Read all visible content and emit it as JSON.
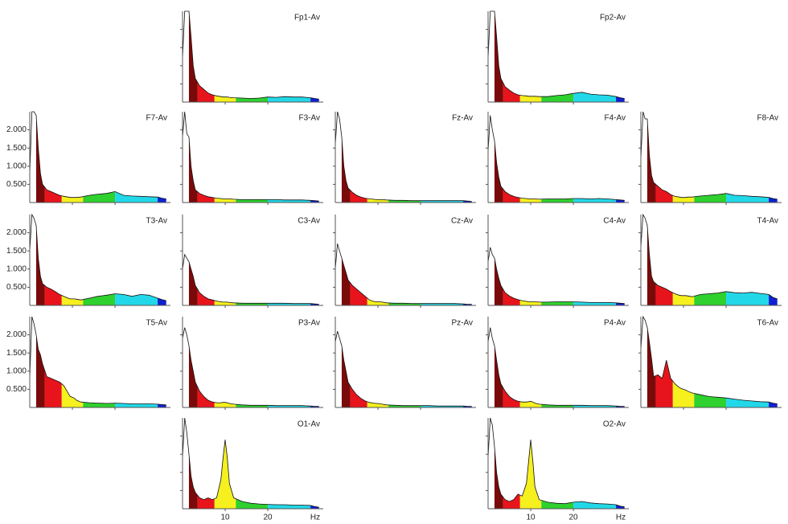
{
  "chart_data": {
    "type": "area",
    "x": [
      0,
      0.5,
      1,
      1.5,
      2,
      2.5,
      3,
      4,
      5,
      6,
      7,
      8,
      9,
      9.5,
      10,
      10.5,
      11,
      12,
      14,
      16,
      18,
      20,
      22,
      24,
      26,
      28,
      30,
      31,
      32
    ],
    "xlim": [
      0,
      33
    ],
    "xticks": [
      10,
      20
    ],
    "xlabel": "Hz",
    "ylim": [
      0,
      2500
    ],
    "yticks": [
      {
        "value": 500,
        "label": "0.500"
      },
      {
        "value": 1000,
        "label": "1.000"
      },
      {
        "value": 1500,
        "label": "1.500"
      },
      {
        "value": 2000,
        "label": "2.000"
      }
    ],
    "grid": false,
    "line_color": "#111111",
    "bands": [
      {
        "from": 1.5,
        "to": 3.5,
        "color": "#7a0a0a"
      },
      {
        "from": 3.5,
        "to": 7.5,
        "color": "#e8141c"
      },
      {
        "from": 7.5,
        "to": 12.5,
        "color": "#f5f01e"
      },
      {
        "from": 12.5,
        "to": 20,
        "color": "#2ed12e"
      },
      {
        "from": 20,
        "to": 30,
        "color": "#22d8e8"
      },
      {
        "from": 30,
        "to": 33,
        "color": "#1020d0"
      }
    ],
    "series": [
      {
        "name": "Fp1-Av",
        "values": [
          1200,
          2500,
          2500,
          2500,
          1800,
          1000,
          650,
          450,
          350,
          250,
          200,
          170,
          150,
          140,
          140,
          140,
          130,
          120,
          110,
          100,
          110,
          140,
          130,
          150,
          140,
          140,
          120,
          100,
          80
        ]
      },
      {
        "name": "Fp2-Av",
        "values": [
          1200,
          2500,
          2500,
          2500,
          1800,
          1000,
          650,
          420,
          330,
          250,
          200,
          180,
          170,
          160,
          160,
          160,
          160,
          150,
          150,
          180,
          200,
          240,
          270,
          220,
          200,
          190,
          150,
          120,
          100
        ]
      },
      {
        "name": "F7-Av",
        "values": [
          800,
          2500,
          2500,
          2400,
          1500,
          800,
          500,
          350,
          300,
          250,
          200,
          170,
          150,
          140,
          140,
          140,
          140,
          150,
          200,
          230,
          250,
          300,
          200,
          180,
          170,
          160,
          150,
          120,
          100
        ]
      },
      {
        "name": "F3-Av",
        "values": [
          1800,
          2500,
          1900,
          1800,
          1000,
          600,
          350,
          250,
          200,
          160,
          140,
          120,
          110,
          100,
          100,
          100,
          100,
          90,
          80,
          80,
          80,
          80,
          80,
          70,
          70,
          70,
          60,
          50,
          40
        ]
      },
      {
        "name": "Fz-Av",
        "values": [
          1600,
          2500,
          2300,
          1800,
          1000,
          600,
          400,
          280,
          200,
          150,
          120,
          100,
          90,
          80,
          80,
          80,
          80,
          70,
          60,
          60,
          50,
          50,
          50,
          50,
          50,
          50,
          50,
          40,
          30
        ]
      },
      {
        "name": "F4-Av",
        "values": [
          1400,
          2400,
          2000,
          1700,
          1100,
          700,
          450,
          300,
          220,
          170,
          140,
          120,
          110,
          100,
          100,
          100,
          100,
          90,
          100,
          100,
          100,
          110,
          110,
          100,
          110,
          100,
          80,
          70,
          60
        ]
      },
      {
        "name": "F8-Av",
        "values": [
          1200,
          2500,
          2300,
          2300,
          1300,
          750,
          550,
          450,
          350,
          300,
          220,
          170,
          150,
          140,
          140,
          140,
          150,
          150,
          180,
          200,
          220,
          250,
          200,
          190,
          170,
          160,
          140,
          110,
          90
        ]
      },
      {
        "name": "T3-Av",
        "values": [
          1500,
          2500,
          2400,
          2200,
          1300,
          800,
          600,
          500,
          450,
          380,
          300,
          250,
          200,
          180,
          180,
          180,
          170,
          150,
          200,
          250,
          280,
          320,
          300,
          250,
          300,
          280,
          200,
          160,
          130
        ]
      },
      {
        "name": "C3-Av",
        "values": [
          1000,
          1400,
          1300,
          1200,
          1000,
          800,
          550,
          350,
          250,
          180,
          150,
          120,
          100,
          90,
          90,
          90,
          80,
          70,
          60,
          60,
          60,
          60,
          60,
          60,
          50,
          50,
          50,
          40,
          30
        ]
      },
      {
        "name": "Cz-Av",
        "values": [
          1000,
          1700,
          1500,
          1300,
          1100,
          900,
          700,
          550,
          450,
          350,
          250,
          150,
          110,
          100,
          100,
          100,
          90,
          70,
          60,
          60,
          50,
          50,
          50,
          50,
          50,
          50,
          40,
          30,
          30
        ]
      },
      {
        "name": "C4-Av",
        "values": [
          1200,
          1600,
          1400,
          1300,
          1000,
          750,
          550,
          350,
          260,
          200,
          160,
          130,
          110,
          100,
          100,
          100,
          100,
          90,
          90,
          100,
          100,
          100,
          90,
          80,
          80,
          80,
          70,
          60,
          50
        ]
      },
      {
        "name": "T4-Av",
        "values": [
          1600,
          2500,
          2400,
          2200,
          1400,
          800,
          650,
          550,
          500,
          450,
          380,
          320,
          280,
          270,
          270,
          270,
          260,
          240,
          300,
          320,
          340,
          380,
          350,
          340,
          360,
          330,
          300,
          220,
          180
        ]
      },
      {
        "name": "T5-Av",
        "values": [
          800,
          2500,
          2300,
          2000,
          1600,
          1450,
          1200,
          850,
          800,
          750,
          700,
          600,
          400,
          300,
          280,
          250,
          200,
          150,
          130,
          120,
          110,
          120,
          110,
          100,
          100,
          100,
          90,
          80,
          70
        ]
      },
      {
        "name": "P3-Av",
        "values": [
          1900,
          2200,
          2000,
          1700,
          1300,
          1000,
          700,
          450,
          300,
          200,
          150,
          130,
          130,
          140,
          140,
          130,
          110,
          90,
          70,
          60,
          60,
          60,
          50,
          50,
          50,
          50,
          40,
          30,
          30
        ]
      },
      {
        "name": "Pz-Av",
        "values": [
          1800,
          2100,
          1900,
          1700,
          1300,
          1000,
          700,
          500,
          350,
          250,
          180,
          140,
          120,
          110,
          110,
          100,
          90,
          70,
          60,
          50,
          50,
          50,
          50,
          40,
          40,
          40,
          40,
          30,
          30
        ]
      },
      {
        "name": "P4-Av",
        "values": [
          1800,
          2200,
          1900,
          1700,
          1300,
          900,
          650,
          450,
          300,
          220,
          170,
          150,
          150,
          160,
          170,
          150,
          120,
          90,
          70,
          60,
          60,
          60,
          60,
          50,
          50,
          50,
          40,
          30,
          30
        ]
      },
      {
        "name": "T6-Av",
        "values": [
          1600,
          2500,
          2400,
          2200,
          1800,
          1350,
          850,
          900,
          800,
          1300,
          800,
          650,
          550,
          520,
          500,
          480,
          450,
          400,
          350,
          300,
          280,
          260,
          230,
          200,
          180,
          160,
          150,
          120,
          100
        ]
      },
      {
        "name": "O1-Av",
        "values": [
          1400,
          2500,
          2100,
          1500,
          900,
          600,
          450,
          300,
          250,
          300,
          250,
          300,
          800,
          1400,
          1900,
          1400,
          700,
          300,
          200,
          150,
          130,
          120,
          110,
          110,
          100,
          100,
          90,
          60,
          40
        ]
      },
      {
        "name": "O2-Av",
        "values": [
          1400,
          2500,
          2300,
          1700,
          1000,
          600,
          400,
          250,
          200,
          250,
          400,
          350,
          700,
          1300,
          1900,
          1300,
          600,
          250,
          180,
          150,
          140,
          180,
          200,
          160,
          140,
          130,
          110,
          70,
          50
        ]
      }
    ]
  }
}
